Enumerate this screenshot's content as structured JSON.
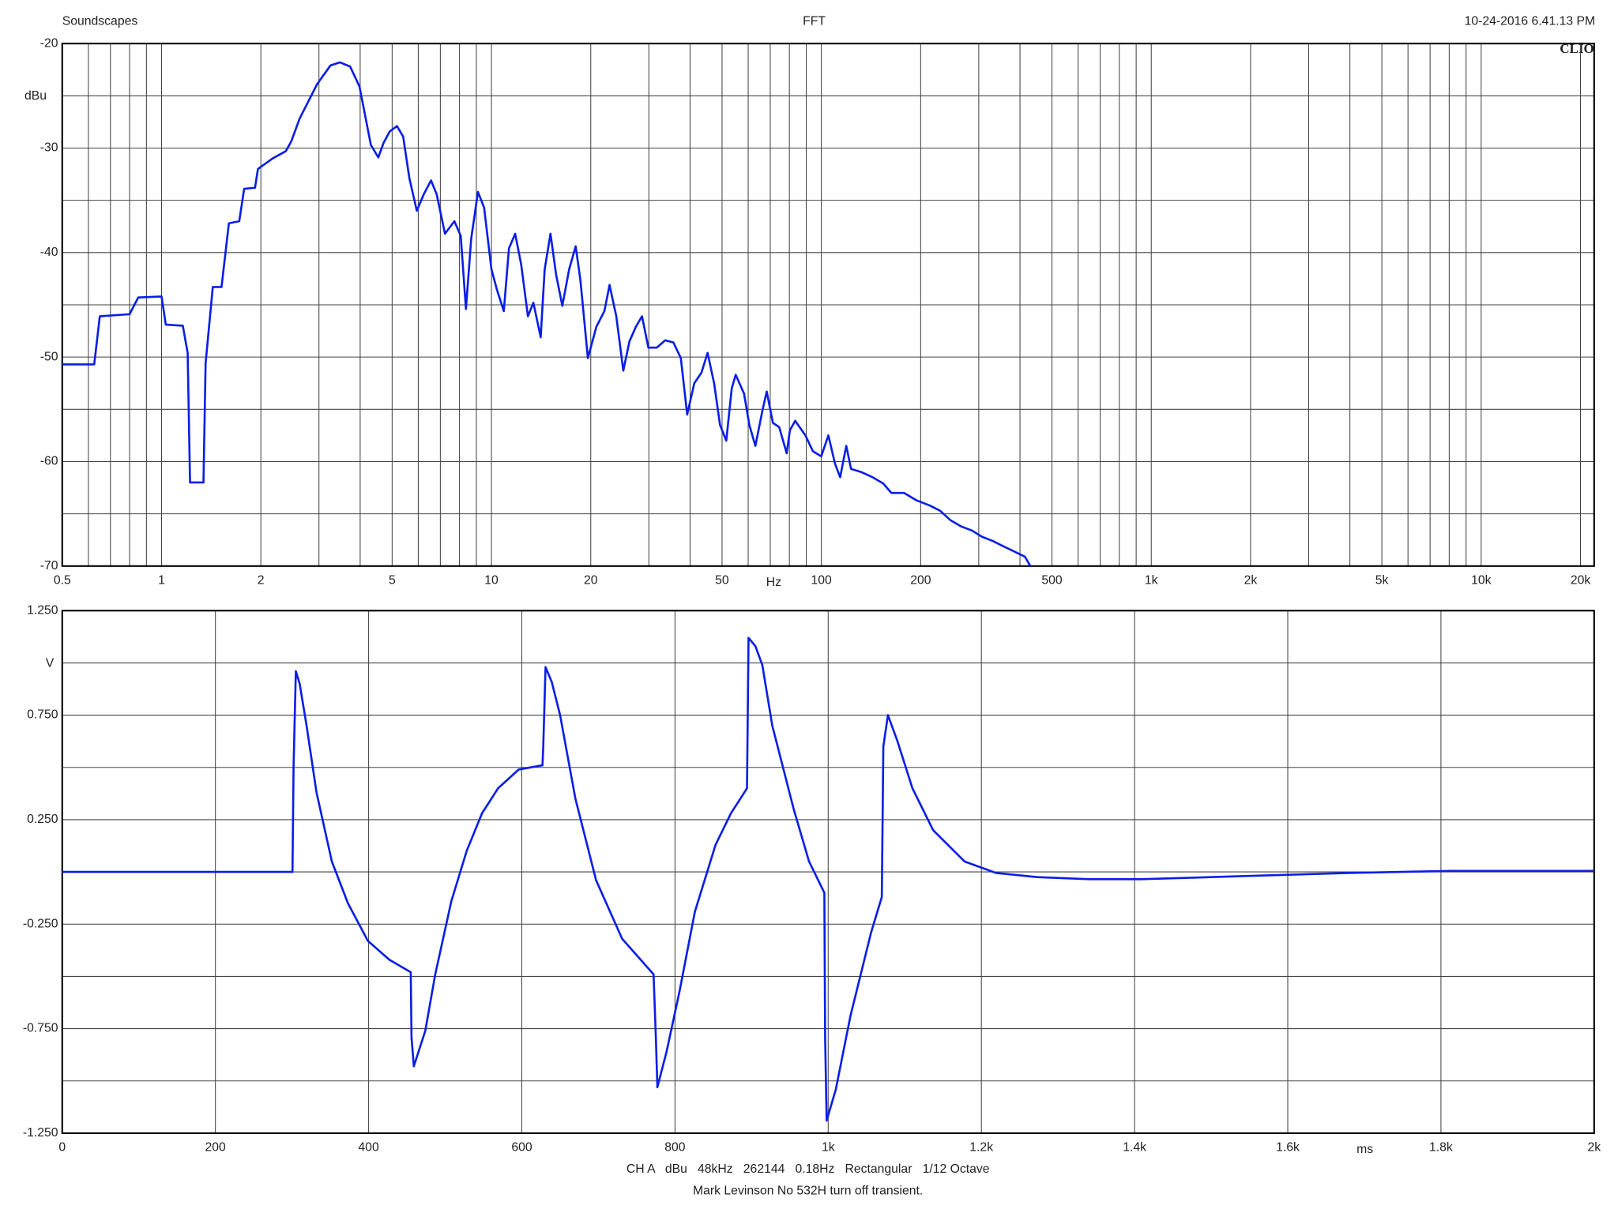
{
  "header": {
    "left": "Soundscapes",
    "right": "10-24-2016 6.41.13 PM",
    "brand": "CLIO"
  },
  "footer": [
    "CH A   dBu   48kHz   262144   0.18Hz   Rectangular   1/12 Octave",
    "Mark Levinson No 532H turn off transient."
  ],
  "chart_data": [
    {
      "type": "line",
      "title": "FFT",
      "y_label": "dBu",
      "x_label": "Hz",
      "xscale": "log",
      "grid": true,
      "color": "#0a1ee6",
      "xlim": [
        0.5,
        22000
      ],
      "ylim": [
        -70,
        -20
      ],
      "xticks": [
        0.5,
        1,
        2,
        5,
        10,
        20,
        50,
        100,
        200,
        500,
        {
          "value": 1000,
          "label": "1k"
        },
        {
          "value": 2000,
          "label": "2k"
        },
        {
          "value": 5000,
          "label": "5k"
        },
        {
          "value": 10000,
          "label": "10k"
        },
        {
          "value": 20000,
          "label": "20k"
        }
      ],
      "minor_xticks": [
        0.6,
        0.7,
        0.8,
        0.9,
        3,
        4,
        6,
        7,
        8,
        9,
        30,
        40,
        60,
        70,
        80,
        90,
        300,
        400,
        600,
        700,
        800,
        900,
        3000,
        4000,
        6000,
        7000,
        8000,
        9000
      ],
      "yticks": [
        -20,
        -30,
        -40,
        -50,
        -60,
        -70
      ],
      "minor_yticks": [
        -25,
        -35,
        -45,
        -55,
        -65
      ],
      "x": [
        0.5,
        0.625,
        0.65,
        0.8,
        0.85,
        1.0,
        1.03,
        1.16,
        1.2,
        1.22,
        1.34,
        1.36,
        1.43,
        1.52,
        1.6,
        1.72,
        1.78,
        1.92,
        1.96,
        2.17,
        2.38,
        2.47,
        2.62,
        2.96,
        3.25,
        3.47,
        3.73,
        3.98,
        4.31,
        4.54,
        4.71,
        4.92,
        5.17,
        5.4,
        5.64,
        5.94,
        6.24,
        6.56,
        6.82,
        7.23,
        7.72,
        8.07,
        8.37,
        8.68,
        9.1,
        9.5,
        10,
        10.4,
        10.9,
        11.3,
        11.8,
        12.3,
        12.9,
        13.4,
        14.1,
        14.5,
        15.1,
        15.7,
        16.4,
        17.2,
        18,
        18.6,
        19.6,
        20.8,
        22,
        22.8,
        23.9,
        25.1,
        26.2,
        27.4,
        28.6,
        29.9,
        31.7,
        33.6,
        35.6,
        37.5,
        39.2,
        41.2,
        43.3,
        45.2,
        47.3,
        49.3,
        51.5,
        53.5,
        55,
        58.3,
        60.5,
        63.1,
        66.4,
        68.3,
        71.3,
        74.5,
        78.5,
        80.3,
        83.3,
        89.5,
        94.2,
        99.9,
        105,
        110,
        114,
        119,
        123,
        132,
        143,
        154,
        163,
        178,
        194,
        213,
        229,
        246,
        265,
        286,
        307,
        331,
        356,
        384,
        414,
        430
      ],
      "values": [
        -50.7,
        -50.7,
        -46.1,
        -45.9,
        -44.3,
        -44.2,
        -46.9,
        -47,
        -49.6,
        -62,
        -62,
        -50.6,
        -43.3,
        -43.3,
        -37.2,
        -37,
        -33.9,
        -33.8,
        -32,
        -31,
        -30.3,
        -29.4,
        -27.2,
        -23.9,
        -22.1,
        -21.8,
        -22.2,
        -24.1,
        -29.7,
        -30.9,
        -29.5,
        -28.4,
        -27.9,
        -28.9,
        -32.9,
        -36,
        -34.4,
        -33.1,
        -34.4,
        -38.2,
        -37,
        -38.4,
        -45.4,
        -38.7,
        -34.2,
        -35.7,
        -41.6,
        -43.6,
        -45.6,
        -39.6,
        -38.2,
        -41.1,
        -46.1,
        -44.8,
        -48.1,
        -41.6,
        -38.2,
        -42.1,
        -45.1,
        -41.6,
        -39.4,
        -42.6,
        -50.1,
        -47.1,
        -45.6,
        -43.1,
        -46.1,
        -51.3,
        -48.5,
        -47.1,
        -46.1,
        -49.1,
        -49.1,
        -48.4,
        -48.6,
        -50.1,
        -55.5,
        -52.5,
        -51.5,
        -49.6,
        -52.5,
        -56.5,
        -58,
        -53,
        -51.7,
        -53.5,
        -56.5,
        -58.5,
        -55,
        -53.3,
        -56.3,
        -56.7,
        -59.2,
        -57,
        -56.1,
        -57.5,
        -59,
        -59.5,
        -57.5,
        -60.2,
        -61.5,
        -58.5,
        -60.7,
        -61,
        -61.5,
        -62.1,
        -63,
        -63,
        -63.7,
        -64.2,
        -64.7,
        -65.6,
        -66.2,
        -66.6,
        -67.2,
        -67.6,
        -68.1,
        -68.6,
        -69.1,
        -70
      ]
    },
    {
      "type": "line",
      "y_label": "V",
      "x_label": "ms",
      "grid": true,
      "color": "#0a1ee6",
      "xlim": [
        0,
        2000
      ],
      "ylim": [
        -1.25,
        1.25
      ],
      "xticks": [
        0,
        200,
        400,
        600,
        800,
        {
          "value": 1000,
          "label": "1k"
        },
        {
          "value": 1200,
          "label": "1.2k"
        },
        {
          "value": 1400,
          "label": "1.4k"
        },
        {
          "value": 1600,
          "label": "1.6k"
        },
        {
          "value": 1800,
          "label": "1.8k"
        },
        {
          "value": 2000,
          "label": "2k"
        }
      ],
      "yticks": [
        {
          "value": 1.25,
          "label": "1.250"
        },
        {
          "value": 0.75,
          "label": "0.750"
        },
        {
          "value": 0.25,
          "label": "0.250"
        },
        {
          "value": -0.25,
          "label": "-0.250"
        },
        {
          "value": -0.75,
          "label": "-0.750"
        },
        {
          "value": -1.25,
          "label": "-1.250"
        }
      ],
      "minor_yticks": [
        1,
        0.5,
        0,
        -0.5,
        -1
      ],
      "x": [
        0,
        300.6,
        302,
        305,
        310,
        319,
        332,
        352,
        373,
        399,
        427,
        455,
        456,
        459,
        474,
        487,
        508,
        528,
        548,
        569,
        596,
        627,
        628,
        631,
        639,
        650,
        670,
        697,
        731,
        772,
        775,
        777,
        789,
        806,
        826,
        853,
        873,
        894,
        896,
        905,
        914,
        927,
        955,
        975,
        995,
        996,
        998,
        1010,
        1029,
        1056,
        1070,
        1072,
        1078,
        1090,
        1110,
        1137,
        1178,
        1219,
        1273,
        1341,
        1408,
        1544,
        1679,
        1814,
        2000
      ],
      "values": [
        0,
        0,
        0.5,
        0.96,
        0.9,
        0.7,
        0.38,
        0.05,
        -0.15,
        -0.33,
        -0.42,
        -0.48,
        -0.79,
        -0.93,
        -0.76,
        -0.49,
        -0.14,
        0.1,
        0.28,
        0.4,
        0.49,
        0.51,
        0.6,
        0.98,
        0.91,
        0.75,
        0.35,
        -0.04,
        -0.32,
        -0.49,
        -0.79,
        -1.03,
        -0.86,
        -0.57,
        -0.19,
        0.13,
        0.28,
        0.4,
        1.12,
        1.08,
        0.99,
        0.7,
        0.3,
        0.05,
        -0.1,
        -0.79,
        -1.19,
        -1.04,
        -0.69,
        -0.29,
        -0.12,
        0.6,
        0.75,
        0.63,
        0.4,
        0.2,
        0.05,
        -0.005,
        -0.025,
        -0.035,
        -0.035,
        -0.02,
        -0.005,
        0.005,
        0.005
      ]
    }
  ]
}
